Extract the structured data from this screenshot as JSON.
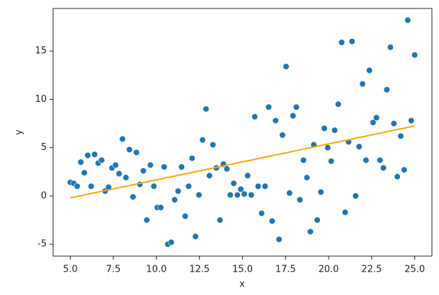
{
  "chart_data": {
    "type": "scatter",
    "x_label": "x",
    "y_label": "y",
    "series": [
      {
        "color": "#1f77b4",
        "x": [
          5.0,
          5.2,
          5.4,
          5.61,
          5.81,
          6.01,
          6.21,
          6.41,
          6.62,
          6.82,
          7.02,
          7.22,
          7.42,
          7.63,
          7.83,
          8.03,
          8.23,
          8.43,
          8.64,
          8.84,
          9.04,
          9.24,
          9.44,
          9.65,
          9.85,
          10.05,
          10.25,
          10.45,
          10.66,
          10.86,
          11.06,
          11.26,
          11.46,
          11.67,
          11.87,
          12.07,
          12.27,
          12.47,
          12.68,
          12.88,
          13.08,
          13.28,
          13.48,
          13.69,
          13.89,
          14.09,
          14.29,
          14.49,
          14.7,
          14.9,
          15.1,
          15.3,
          15.51,
          15.71,
          15.91,
          16.11,
          16.31,
          16.52,
          16.72,
          16.92,
          17.12,
          17.32,
          17.53,
          17.73,
          17.93,
          18.13,
          18.33,
          18.54,
          18.74,
          18.94,
          19.14,
          19.34,
          19.55,
          19.75,
          19.95,
          20.15,
          20.35,
          20.56,
          20.76,
          20.96,
          21.16,
          21.36,
          21.57,
          21.77,
          21.97,
          22.17,
          22.37,
          22.58,
          22.78,
          22.98,
          23.18,
          23.38,
          23.59,
          23.79,
          23.99,
          24.19,
          24.39,
          24.6,
          24.8,
          25.0
        ],
        "values": [
          1.4,
          1.3,
          1.0,
          3.5,
          2.4,
          4.2,
          1.0,
          4.3,
          3.4,
          3.7,
          0.5,
          0.9,
          2.9,
          3.2,
          2.3,
          5.9,
          1.9,
          4.8,
          -0.1,
          4.5,
          1.2,
          2.6,
          -2.5,
          3.2,
          1.0,
          -1.2,
          -1.2,
          3.0,
          -5.0,
          -4.8,
          -0.4,
          0.5,
          3.0,
          -2.1,
          1.0,
          3.9,
          -4.2,
          0.1,
          5.8,
          9.0,
          2.1,
          5.3,
          2.9,
          -2.5,
          3.3,
          2.8,
          0.1,
          1.3,
          0.1,
          0.7,
          0.2,
          2.1,
          0.1,
          8.2,
          1.0,
          -1.8,
          1.0,
          9.2,
          -2.6,
          7.8,
          -4.5,
          6.3,
          13.4,
          0.3,
          8.3,
          9.2,
          -0.4,
          3.7,
          1.9,
          -3.7,
          5.3,
          -2.5,
          0.4,
          7.0,
          5.0,
          3.6,
          6.8,
          9.5,
          15.9,
          -1.7,
          5.6,
          16.0,
          0.0,
          5.1,
          11.6,
          3.7,
          13.0,
          7.6,
          8.1,
          3.7,
          2.9,
          11.0,
          15.4,
          7.5,
          2.0,
          6.2,
          2.7,
          18.2,
          7.8,
          14.6
        ]
      }
    ],
    "fit_line": {
      "color": "#ffa500",
      "x": [
        5,
        25
      ],
      "values": [
        -0.2,
        7.25
      ]
    },
    "xlim": [
      4.0,
      26.0
    ],
    "ylim": [
      -6.23,
      19.41
    ],
    "xticks": [
      {
        "value": 5,
        "label": "5.0"
      },
      {
        "value": 7.5,
        "label": "7.5"
      },
      {
        "value": 10,
        "label": "10.0"
      },
      {
        "value": 12.5,
        "label": "12.5"
      },
      {
        "value": 15,
        "label": "15.0"
      },
      {
        "value": 17.5,
        "label": "17.5"
      },
      {
        "value": 20,
        "label": "20.0"
      },
      {
        "value": 22.5,
        "label": "22.5"
      },
      {
        "value": 25,
        "label": "25.0"
      }
    ],
    "yticks": [
      -5,
      0,
      5,
      10,
      15
    ]
  }
}
